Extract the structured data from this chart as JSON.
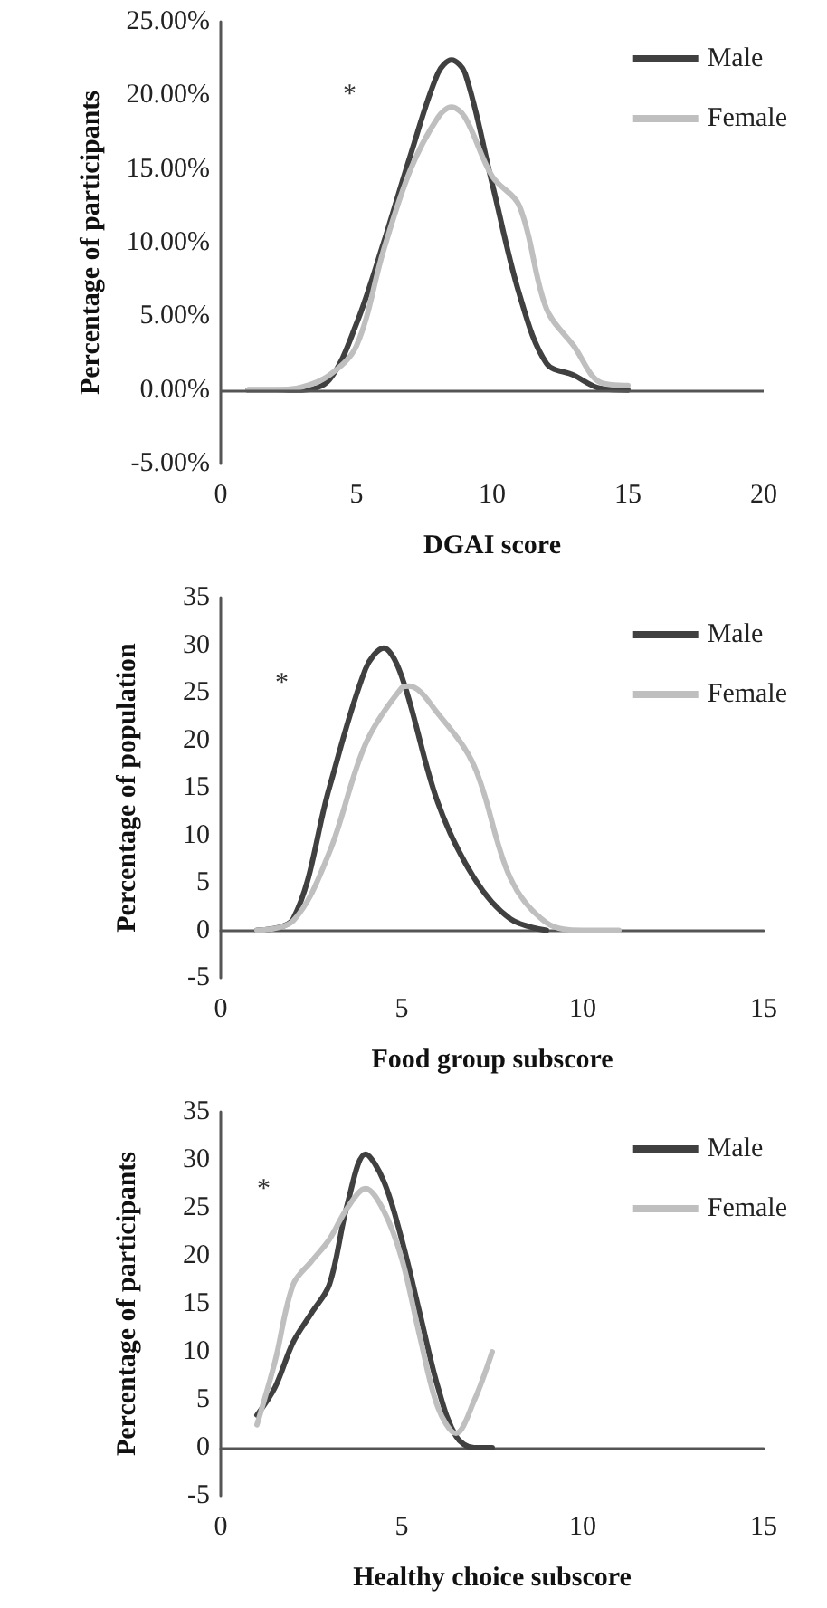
{
  "chart_data": [
    {
      "type": "line",
      "xlabel": "DGAI score",
      "ylabel": "Percentage of participants",
      "xlim": [
        0,
        20
      ],
      "xticks": [
        0,
        5,
        10,
        15,
        20
      ],
      "ylim": [
        -5,
        25
      ],
      "yticks": [
        {
          "value": -5,
          "label": "-5.00%"
        },
        {
          "value": 0,
          "label": "0.00%"
        },
        {
          "value": 5,
          "label": "5.00%"
        },
        {
          "value": 10,
          "label": "10.00%"
        },
        {
          "value": 15,
          "label": "15.00%"
        },
        {
          "value": 20,
          "label": "20.00%"
        },
        {
          "value": 25,
          "label": "25.00%"
        }
      ],
      "grid": false,
      "legend": "top right",
      "marker": "none",
      "line_style": "solid",
      "annotations": [
        "*"
      ],
      "ref_lines": [
        {
          "axis": "y",
          "value": 0,
          "color": "#555555"
        }
      ],
      "series": [
        {
          "name": "Male",
          "color": "#404040",
          "x": [
            1,
            2,
            3,
            4,
            5,
            6,
            7,
            8,
            8.5,
            9,
            10,
            11,
            12,
            13,
            14,
            15
          ],
          "values": [
            0,
            0,
            0,
            0.7,
            4.5,
            10,
            16,
            21.5,
            22.4,
            21.5,
            14,
            6.5,
            1.8,
            1,
            0.1,
            0
          ]
        },
        {
          "name": "Female",
          "color": "#bfbfbf",
          "x": [
            1,
            2,
            3,
            4,
            5,
            6,
            7,
            8,
            8.5,
            9,
            10,
            11,
            12,
            13,
            14,
            15
          ],
          "values": [
            0,
            0,
            0.2,
            1,
            3,
            9.5,
            15,
            18.5,
            19.2,
            18.5,
            14.5,
            12.5,
            5.5,
            3,
            0.5,
            0.3
          ]
        }
      ]
    },
    {
      "type": "line",
      "xlabel": "Food group subscore",
      "ylabel": "Percentage of population",
      "xlim": [
        0,
        15
      ],
      "xticks": [
        0,
        5,
        10,
        15
      ],
      "ylim": [
        -5,
        35
      ],
      "yticks": [
        -5,
        0,
        5,
        10,
        15,
        20,
        25,
        30,
        35
      ],
      "grid": false,
      "legend": "top right",
      "marker": "none",
      "line_style": "solid",
      "annotations": [
        "*"
      ],
      "series": [
        {
          "name": "Male",
          "color": "#404040",
          "x": [
            1,
            2,
            3,
            4,
            4.5,
            5,
            6,
            7,
            8,
            9
          ],
          "values": [
            0,
            1.2,
            15,
            27.5,
            29.7,
            26.7,
            13.4,
            5.5,
            1.2,
            0
          ]
        },
        {
          "name": "Female",
          "color": "#bfbfbf",
          "x": [
            1,
            2,
            3,
            4,
            5,
            5.2,
            6,
            7,
            8,
            9,
            10,
            11
          ],
          "values": [
            0,
            1,
            8.2,
            19.6,
            25.5,
            25.7,
            22.8,
            17.3,
            5.5,
            0.8,
            0,
            0
          ]
        }
      ]
    },
    {
      "type": "line",
      "xlabel": "Healthy choice subscore",
      "ylabel": "Percentage of participants",
      "xlim": [
        0,
        15
      ],
      "xticks": [
        0,
        5,
        10,
        15
      ],
      "ylim": [
        -5,
        35
      ],
      "yticks": [
        -5,
        0,
        5,
        10,
        15,
        20,
        25,
        30,
        35
      ],
      "grid": false,
      "legend": "top right",
      "marker": "none",
      "line_style": "solid",
      "annotations": [
        "*"
      ],
      "series": [
        {
          "name": "Male",
          "color": "#404040",
          "x": [
            1,
            1.5,
            2,
            2.5,
            3,
            3.5,
            4,
            4.5,
            5,
            5.5,
            6,
            6.5,
            7,
            7.5
          ],
          "values": [
            3.4,
            6.3,
            11,
            14,
            17,
            25.4,
            30.6,
            27.8,
            21.7,
            14,
            6.3,
            1.2,
            0,
            0
          ]
        },
        {
          "name": "Female",
          "color": "#bfbfbf",
          "x": [
            1,
            1.5,
            2,
            2.5,
            3,
            3.5,
            4,
            4.5,
            5,
            5.5,
            6,
            6.5,
            7,
            7.5
          ],
          "values": [
            2.4,
            9,
            17,
            19.4,
            21.7,
            25,
            27,
            24.7,
            19.7,
            11.6,
            4.2,
            1.5,
            4.9,
            10
          ]
        }
      ]
    }
  ]
}
